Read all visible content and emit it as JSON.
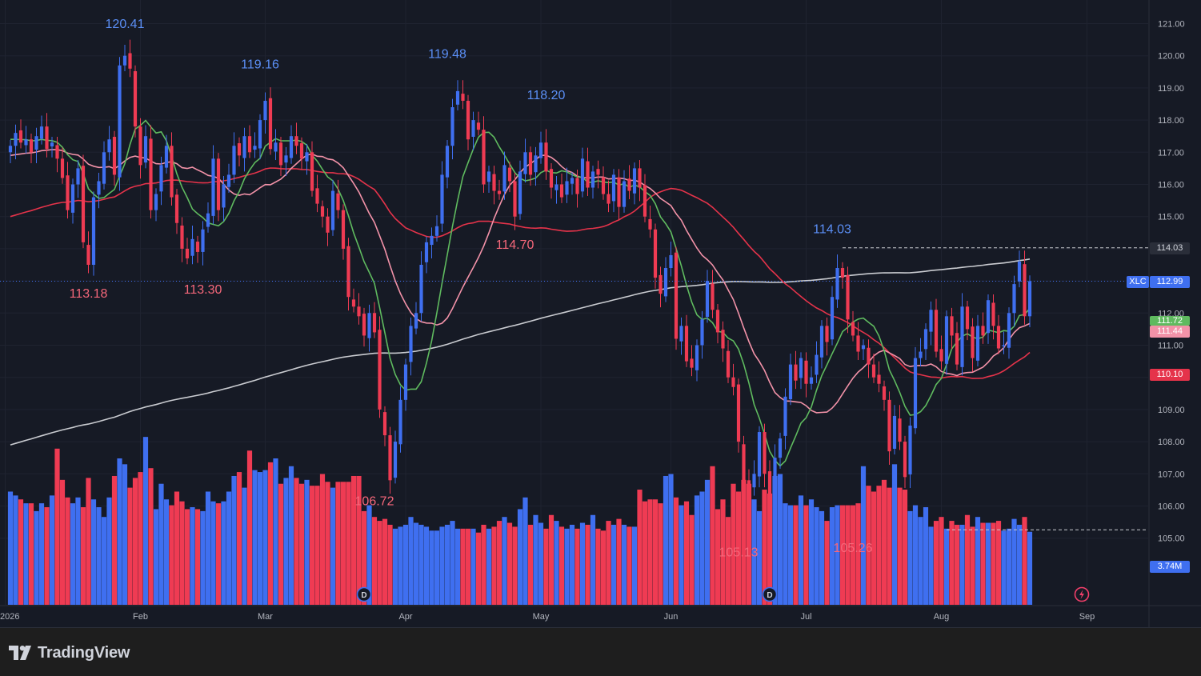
{
  "chart_data": {
    "type": "candlestick",
    "symbol": "XLC",
    "last_price": "112.99",
    "last_volume": "3.74M",
    "x_axis_labels": [
      "2026",
      "Feb",
      "Mar",
      "Apr",
      "May",
      "Jun",
      "Jul",
      "Aug",
      "Sep"
    ],
    "y_axis_labels": [
      "121.00",
      "120.00",
      "119.00",
      "118.00",
      "117.00",
      "116.00",
      "115.00",
      "114.00",
      "113.00",
      "112.00",
      "111.00",
      "110.00",
      "109.00",
      "108.00",
      "107.00",
      "106.00",
      "105.00"
    ],
    "ylim": [
      104.2,
      121.6
    ],
    "colors": {
      "up": "#3f6ff0",
      "down": "#ef3b53",
      "ma_green": "#5fba5f",
      "ma_pink": "#f292a8",
      "ma_red": "#e5334a",
      "ma_gray": "#c9cbd0"
    },
    "moving_average_values": {
      "green": "111.72",
      "pink": "111.44",
      "red": "110.10"
    },
    "price_markers": {
      "high_line": "114.03",
      "low_line": "105.26"
    },
    "annotations": [
      {
        "text": "120.41",
        "type": "high",
        "day": 22,
        "price": 120.41
      },
      {
        "text": "119.16",
        "type": "high",
        "day": 48,
        "price": 119.16
      },
      {
        "text": "119.48",
        "type": "high",
        "day": 84,
        "price": 119.48
      },
      {
        "text": "118.20",
        "type": "high",
        "day": 103,
        "price": 118.2
      },
      {
        "text": "114.03",
        "type": "high",
        "day": 158,
        "price": 114.03
      },
      {
        "text": "113.18",
        "type": "low",
        "day": 15,
        "price": 113.18
      },
      {
        "text": "113.30",
        "type": "low",
        "day": 37,
        "price": 113.3
      },
      {
        "text": "106.72",
        "type": "low",
        "day": 70,
        "price": 106.72
      },
      {
        "text": "114.70",
        "type": "low",
        "day": 97,
        "price": 114.7
      },
      {
        "text": "105.13",
        "type": "low",
        "day": 140,
        "price": 105.13
      },
      {
        "text": "105.26",
        "type": "low",
        "day": 162,
        "price": 105.26
      }
    ],
    "closes": [
      117.2,
      117.6,
      117.3,
      117.4,
      117.0,
      117.5,
      117.8,
      117.1,
      117.3,
      116.8,
      116.2,
      115.2,
      116.0,
      116.5,
      114.2,
      113.5,
      115.6,
      116.1,
      117.0,
      117.4,
      116.3,
      119.7,
      120.0,
      119.6,
      117.8,
      116.6,
      117.5,
      115.2,
      115.7,
      116.6,
      117.2,
      115.6,
      114.8,
      114.0,
      113.7,
      114.3,
      113.9,
      114.6,
      115.1,
      116.8,
      115.2,
      116.0,
      116.3,
      117.2,
      116.9,
      117.5,
      117.0,
      117.2,
      118.0,
      118.6,
      117.1,
      117.3,
      116.6,
      116.9,
      117.5,
      117.2,
      116.8,
      117.0,
      115.8,
      115.4,
      115.0,
      114.5,
      115.8,
      115.2,
      114.0,
      112.5,
      112.2,
      111.9,
      111.3,
      112.0,
      111.4,
      109.0,
      108.2,
      106.8,
      108.0,
      109.3,
      110.4,
      111.6,
      112.0,
      113.5,
      114.2,
      114.4,
      114.7,
      116.3,
      117.2,
      118.4,
      118.9,
      118.6,
      117.4,
      118.0,
      117.7,
      116.0,
      116.4,
      115.8,
      115.7,
      116.6,
      116.1,
      115.0,
      116.4,
      117.0,
      116.3,
      116.9,
      117.3,
      116.4,
      115.9,
      116.0,
      115.6,
      116.1,
      116.2,
      115.7,
      116.8,
      115.9,
      116.4,
      116.3,
      115.7,
      115.4,
      116.3,
      115.3,
      116.1,
      115.8,
      116.5,
      115.9,
      115.0,
      114.6,
      113.1,
      112.6,
      113.4,
      113.8,
      111.2,
      111.6,
      110.5,
      110.3,
      111.0,
      111.8,
      113.0,
      112.1,
      111.4,
      110.9,
      110.0,
      109.7,
      108.0,
      106.8,
      106.5,
      107.0,
      108.3,
      107.0,
      106.0,
      107.5,
      108.1,
      109.4,
      110.4,
      109.9,
      110.6,
      109.8,
      110.0,
      110.7,
      111.6,
      111.1,
      112.5,
      113.4,
      113.1,
      111.8,
      111.3,
      110.8,
      111.0,
      110.4,
      110.0,
      109.8,
      109.3,
      107.7,
      108.8,
      108.0,
      106.9,
      108.5,
      110.6,
      110.8,
      111.5,
      112.1,
      110.8,
      110.5,
      111.9,
      111.3,
      110.4,
      112.2,
      111.5,
      110.6,
      111.6,
      111.3,
      112.4,
      111.6,
      110.9,
      111.0,
      112.0,
      112.9,
      113.6,
      111.9,
      112.99
    ],
    "volumes_m": [
      5.8,
      5.6,
      5.4,
      5.2,
      5.2,
      4.8,
      5.2,
      5.0,
      5.6,
      8.0,
      6.4,
      5.5,
      5.2,
      5.5,
      5.0,
      6.5,
      5.4,
      5.0,
      4.5,
      5.5,
      6.6,
      7.5,
      7.2,
      6.0,
      6.5,
      6.8,
      8.6,
      7.0,
      4.9,
      6.2,
      5.4,
      5.1,
      5.8,
      5.3,
      4.9,
      5.0,
      4.9,
      4.8,
      5.8,
      5.3,
      5.2,
      5.3,
      5.8,
      6.6,
      6.8,
      6.0,
      7.9,
      6.9,
      6.8,
      6.9,
      7.3,
      7.5,
      6.2,
      6.5,
      7.1,
      6.5,
      6.2,
      6.4,
      6.1,
      6.1,
      6.7,
      6.3,
      6.0,
      6.3,
      6.3,
      6.3,
      6.6,
      6.6,
      4.8,
      5.1,
      4.5,
      4.3,
      4.4,
      4.1,
      3.9,
      4.0,
      4.1,
      4.5,
      4.2,
      4.1,
      4.0,
      3.8,
      3.8,
      4.0,
      4.1,
      4.3,
      3.9,
      3.9,
      3.9,
      3.9,
      3.7,
      4.1,
      3.9,
      4.0,
      4.3,
      4.5,
      4.2,
      4.0,
      4.9,
      5.5,
      4.1,
      4.6,
      4.2,
      3.9,
      4.6,
      4.3,
      4.0,
      3.9,
      4.1,
      3.9,
      4.2,
      4.1,
      4.6,
      3.9,
      3.8,
      4.3,
      4.1,
      4.4,
      4.1,
      4.0,
      4.0,
      5.9,
      5.3,
      5.4,
      5.4,
      5.2,
      6.6,
      6.7,
      5.5,
      5.1,
      5.3,
      4.6,
      5.6,
      5.8,
      6.4,
      7.1,
      4.9,
      5.4,
      4.5,
      6.2,
      5.8,
      6.4,
      6.2,
      5.4,
      4.8,
      5.9,
      5.7,
      6.6,
      6.7,
      5.2,
      5.1,
      5.1,
      5.6,
      5.1,
      5.4,
      5.0,
      4.8,
      4.3,
      5.0,
      5.1,
      5.1,
      5.1,
      5.1,
      5.2,
      7.1,
      6.1,
      5.8,
      6.1,
      6.4,
      6.0,
      7.2,
      6.0,
      5.9,
      4.8,
      5.1,
      4.5,
      5.0,
      4.0,
      4.3,
      4.5,
      3.9,
      4.3,
      4.1,
      4.1,
      4.6,
      4.0,
      4.5,
      4.2,
      4.2,
      4.2,
      4.3,
      3.8,
      3.9,
      4.4,
      4.1,
      4.5,
      3.74
    ]
  },
  "branding": {
    "name": "TradingView"
  }
}
